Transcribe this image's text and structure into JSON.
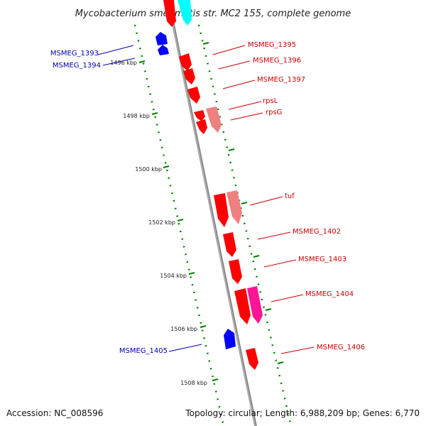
{
  "title": "Mycobacterium smegmatis str. MC2 155, complete genome",
  "footer": {
    "accession": "Accession: NC_008596",
    "summary": "Topology: circular; Length: 6,988,209 bp; Genes: 6,770"
  },
  "colors": {
    "forward_cds": "#ff0000",
    "forward_rna": "#f08080",
    "forward_special": "#ff1493",
    "reverse_cds": "#0000ff",
    "top_fragment": "#00ffff",
    "backbone": "#999999",
    "tick": "#008000",
    "label_forward": "#cc0000",
    "label_reverse": "#0000aa"
  },
  "ticks": [
    {
      "label": "1496 kbp"
    },
    {
      "label": "1498 kbp"
    },
    {
      "label": "1500 kbp"
    },
    {
      "label": "1502 kbp"
    },
    {
      "label": "1504 kbp"
    },
    {
      "label": "1506 kbp"
    },
    {
      "label": "1508 kbp"
    }
  ],
  "genes": [
    {
      "name": "MSMEG_1393",
      "strand": "reverse"
    },
    {
      "name": "MSMEG_1394",
      "strand": "reverse"
    },
    {
      "name": "MSMEG_1395",
      "strand": "forward"
    },
    {
      "name": "MSMEG_1396",
      "strand": "forward"
    },
    {
      "name": "MSMEG_1397",
      "strand": "forward"
    },
    {
      "name": "rpsL",
      "strand": "forward"
    },
    {
      "name": "rpsG",
      "strand": "forward"
    },
    {
      "name": "tuf",
      "strand": "forward"
    },
    {
      "name": "MSMEG_1402",
      "strand": "forward"
    },
    {
      "name": "MSMEG_1403",
      "strand": "forward"
    },
    {
      "name": "MSMEG_1404",
      "strand": "forward"
    },
    {
      "name": "MSMEG_1405",
      "strand": "reverse"
    },
    {
      "name": "MSMEG_1406",
      "strand": "forward"
    }
  ]
}
